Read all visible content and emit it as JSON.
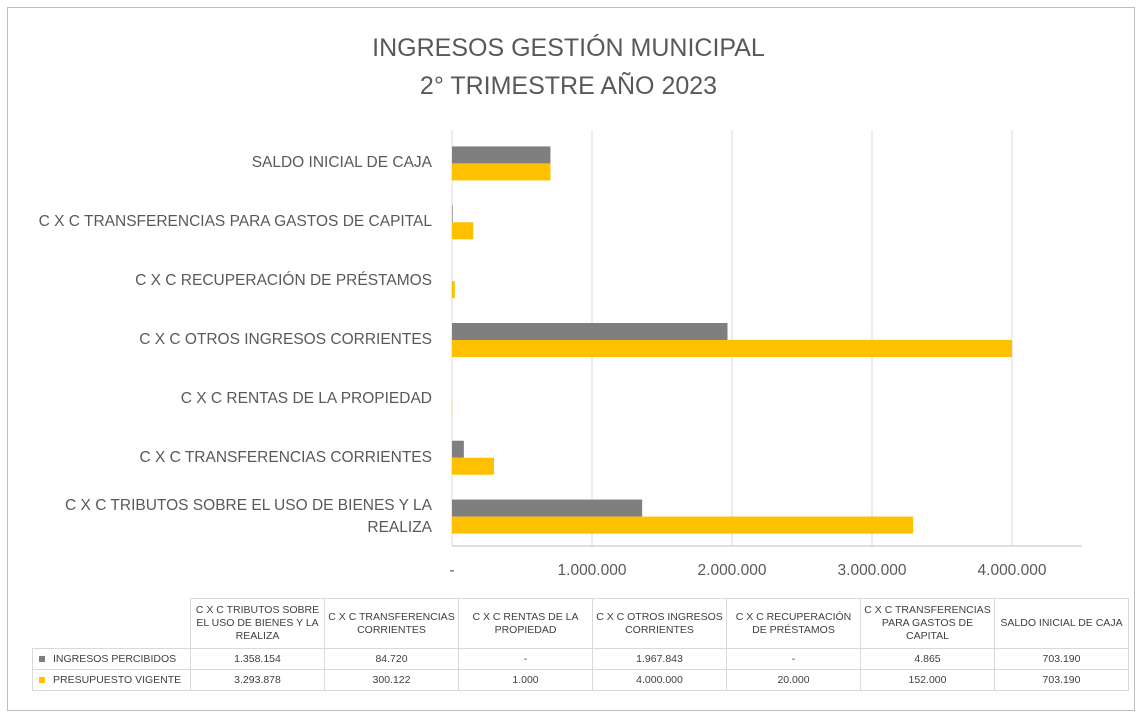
{
  "chart_data": {
    "type": "bar",
    "orientation": "horizontal",
    "title": "INGRESOS GESTIÓN MUNICIPAL",
    "subtitle": "2° TRIMESTRE AÑO 2023",
    "categories": [
      "C X C TRIBUTOS SOBRE EL USO DE BIENES Y LA REALIZA",
      "C X C TRANSFERENCIAS CORRIENTES",
      "C X C RENTAS DE LA PROPIEDAD",
      "C X C OTROS INGRESOS CORRIENTES",
      "C X C RECUPERACIÓN DE PRÉSTAMOS",
      "C X C TRANSFERENCIAS PARA GASTOS DE CAPITAL",
      "SALDO INICIAL DE CAJA"
    ],
    "series": [
      {
        "name": "INGRESOS PERCIBIDOS",
        "color": "#7f7f7f",
        "values": [
          1358154,
          84720,
          0,
          1967843,
          0,
          4865,
          703190
        ],
        "value_labels": [
          "1.358.154",
          "84.720",
          "-",
          "1.967.843",
          "-",
          "4.865",
          "703.190"
        ]
      },
      {
        "name": "PRESUPUESTO VIGENTE",
        "color": "#ffc000",
        "values": [
          3293878,
          300122,
          1000,
          4000000,
          20000,
          152000,
          703190
        ],
        "value_labels": [
          "3.293.878",
          "300.122",
          "1.000",
          "4.000.000",
          "20.000",
          "152.000",
          "703.190"
        ]
      }
    ],
    "xlim": [
      0,
      4500000
    ],
    "xticks": [
      {
        "value": 0,
        "label": "-"
      },
      {
        "value": 1000000,
        "label": "1.000.000"
      },
      {
        "value": 2000000,
        "label": "2.000.000"
      },
      {
        "value": 3000000,
        "label": "3.000.000"
      },
      {
        "value": 4000000,
        "label": "4.000.000"
      }
    ],
    "grid": true,
    "data_table": true
  }
}
